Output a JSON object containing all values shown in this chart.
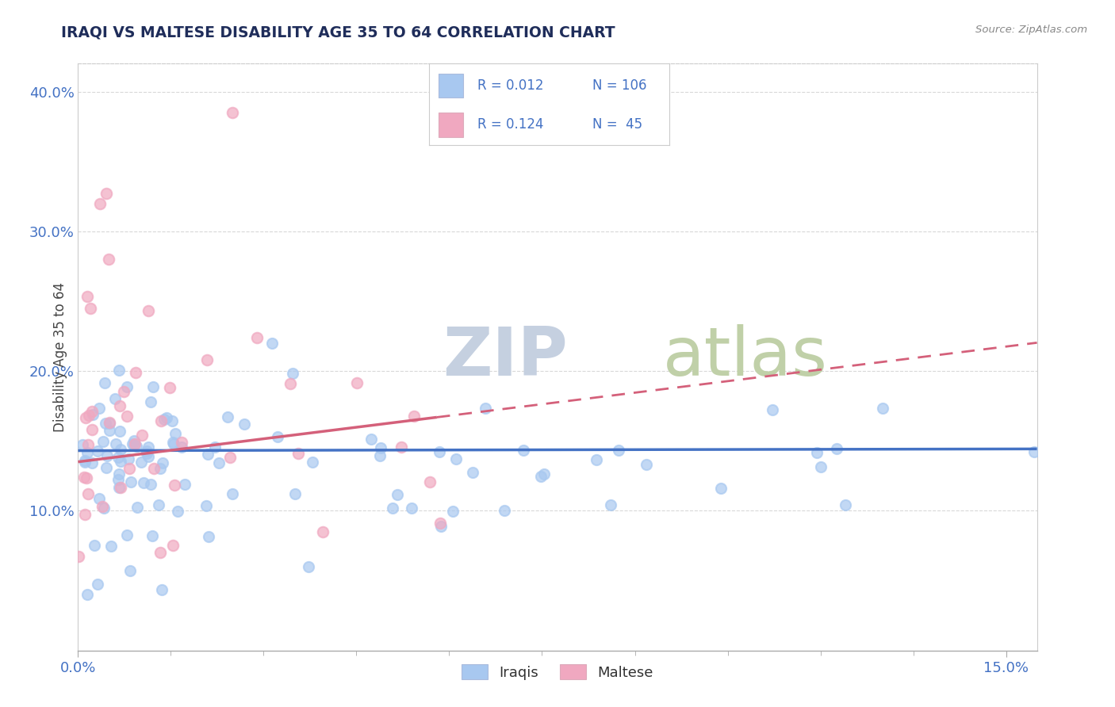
{
  "title": "IRAQI VS MALTESE DISABILITY AGE 35 TO 64 CORRELATION CHART",
  "source": "Source: ZipAtlas.com",
  "ylabel": "Disability Age 35 to 64",
  "ylim": [
    0.0,
    0.42
  ],
  "xlim": [
    0.0,
    0.155
  ],
  "yticks": [
    0.1,
    0.2,
    0.3,
    0.4
  ],
  "ytick_labels": [
    "10.0%",
    "20.0%",
    "30.0%",
    "40.0%"
  ],
  "xtick_left": "0.0%",
  "xtick_right": "15.0%",
  "iraqi_R": "0.012",
  "iraqi_N": "106",
  "maltese_R": "0.124",
  "maltese_N": "45",
  "iraqi_color": "#a8c8f0",
  "maltese_color": "#f0a8c0",
  "iraqi_line_color": "#4472c4",
  "maltese_line_color": "#d4607a",
  "title_color": "#1f2d5a",
  "axis_label_color": "#4472c4",
  "tick_color": "#4472c4",
  "watermark_zip_color": "#c8d4e8",
  "watermark_atlas_color": "#c8d8b0",
  "background_color": "#ffffff",
  "grid_color": "#d8d8d8",
  "legend_text_color": "#333333",
  "source_color": "#888888",
  "iraqi_seed": 123,
  "maltese_seed": 456,
  "n_iraqi": 106,
  "n_maltese": 45
}
